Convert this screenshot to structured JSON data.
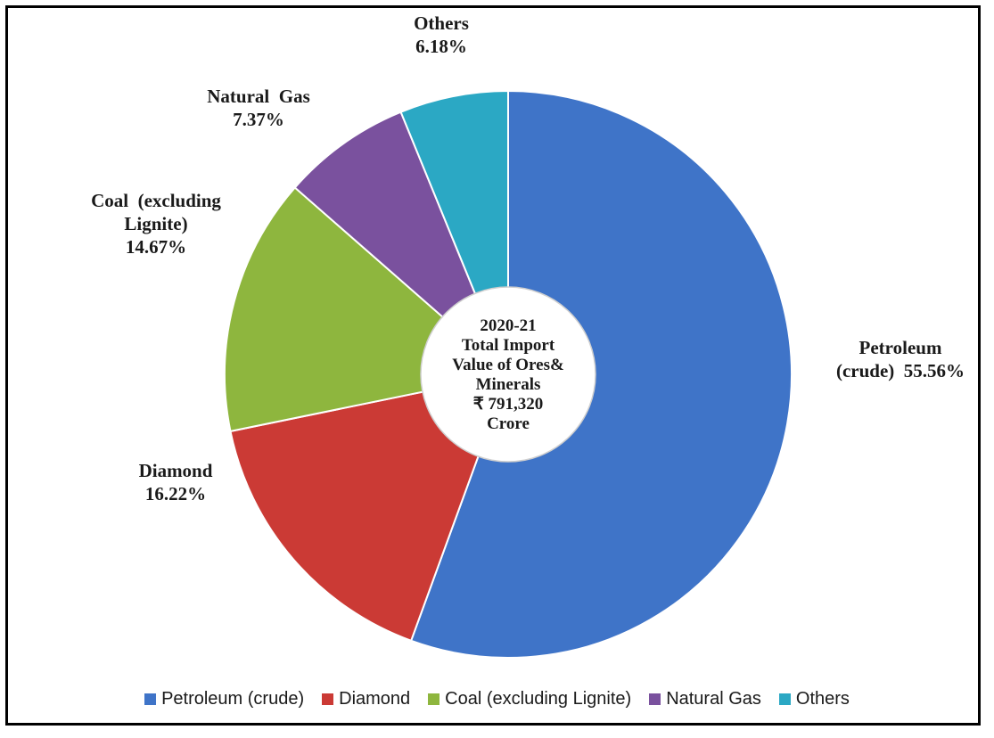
{
  "chart_data": {
    "type": "pie",
    "center_label": [
      "2020-21",
      "Total Import",
      "Value of Ores&",
      "Minerals",
      "₹ 791,320",
      "Crore"
    ],
    "series": [
      {
        "name": "Petroleum (crude)",
        "value": 55.56,
        "label_lines": [
          "Petroleum",
          "(crude)  55.56%"
        ],
        "color": "#3F74C8"
      },
      {
        "name": "Diamond",
        "value": 16.22,
        "label_lines": [
          "Diamond",
          "16.22%"
        ],
        "color": "#CB3A35"
      },
      {
        "name": "Coal (excluding Lignite)",
        "value": 14.67,
        "label_lines": [
          "Coal  (excluding",
          "Lignite)",
          "14.67%"
        ],
        "color": "#8EB63E"
      },
      {
        "name": "Natural Gas",
        "value": 7.37,
        "label_lines": [
          "Natural  Gas",
          "7.37%"
        ],
        "color": "#7A519E"
      },
      {
        "name": "Others",
        "value": 6.18,
        "label_lines": [
          "Others",
          "6.18%"
        ],
        "color": "#2BA8C4"
      }
    ],
    "legend": {
      "placement": "bottom",
      "entries": [
        "Petroleum (crude)",
        "Diamond",
        "Coal (excluding Lignite)",
        "Natural Gas",
        "Others"
      ]
    }
  }
}
